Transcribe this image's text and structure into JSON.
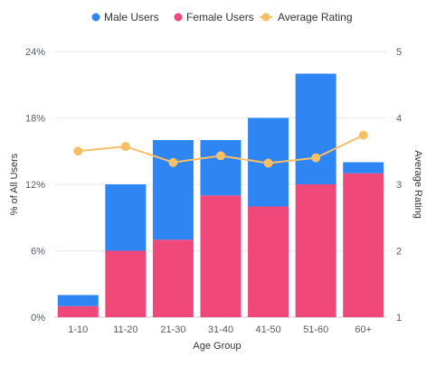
{
  "chart_data": {
    "type": "bar",
    "stacked": true,
    "categories": [
      "1-10",
      "11-20",
      "21-30",
      "31-40",
      "41-50",
      "51-60",
      "60+"
    ],
    "series": [
      {
        "name": "Female Users",
        "kind": "bar",
        "axis": "left",
        "color": "#f0487a",
        "values": [
          1,
          6,
          7,
          11,
          10,
          12,
          13
        ]
      },
      {
        "name": "Male Users",
        "kind": "bar",
        "axis": "left",
        "color": "#2e86f5",
        "values": [
          1,
          6,
          9,
          5,
          8,
          10,
          1
        ]
      },
      {
        "name": "Average Rating",
        "kind": "line",
        "axis": "right",
        "color": "#f8bf65",
        "values": [
          3.5,
          3.57,
          3.33,
          3.43,
          3.32,
          3.4,
          3.74
        ]
      }
    ],
    "legend": [
      "Male Users",
      "Female Users",
      "Average Rating"
    ],
    "legend_colors": [
      "#2e86f5",
      "#f0487a",
      "#f8bf65"
    ],
    "legend_position": "top",
    "xlabel": "Age Group",
    "ylabel": "% of All Users",
    "y2label": "Average Rating",
    "ylim": [
      0,
      24
    ],
    "yticks": [
      "0%",
      "6%",
      "12%",
      "18%",
      "24%"
    ],
    "y2lim": [
      1,
      5
    ],
    "y2ticks": [
      "1",
      "2",
      "3",
      "4",
      "5"
    ],
    "grid": "horizontal"
  }
}
